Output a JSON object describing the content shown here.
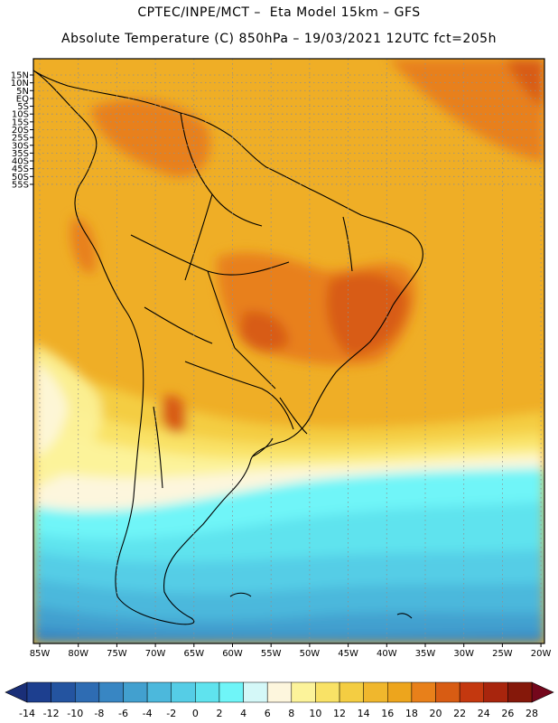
{
  "header": {
    "title_line1": "CPTEC/INPE/MCT –  Eta Model 15km – GFS",
    "title_line2": "Absolute Temperature (C) 850hPa – 19/03/2021 12UTC fct=205h"
  },
  "map": {
    "region": "South America",
    "lat_labels": [
      "15N",
      "10N",
      "5N",
      "EQ",
      "5S",
      "10S",
      "15S",
      "20S",
      "25S",
      "30S",
      "35S",
      "40S",
      "45S",
      "50S",
      "55S"
    ],
    "lon_labels": [
      "85W",
      "80W",
      "75W",
      "70W",
      "65W",
      "60W",
      "55W",
      "50W",
      "45W",
      "40W",
      "35W",
      "30W",
      "25W",
      "20W"
    ]
  },
  "colorbar": {
    "labels": [
      "-14",
      "-12",
      "-10",
      "-8",
      "-6",
      "-4",
      "-2",
      "0",
      "2",
      "4",
      "6",
      "8",
      "10",
      "12",
      "14",
      "16",
      "18",
      "20",
      "22",
      "24",
      "26",
      "28"
    ],
    "colors": [
      "#1d3f8f",
      "#2454a0",
      "#2e6cb3",
      "#3886c3",
      "#42a0cf",
      "#4cb8dc",
      "#55cde6",
      "#5fe3ee",
      "#6ff5f8",
      "#d4f8f8",
      "#fdf6dd",
      "#fcf39a",
      "#f9e266",
      "#f4cd42",
      "#f0b72d",
      "#eda51d",
      "#e8801a",
      "#d85c13",
      "#c4380f",
      "#a8250d",
      "#85180a"
    ],
    "low_arrow_color": "#1a2f78",
    "high_arrow_color": "#74071c"
  }
}
